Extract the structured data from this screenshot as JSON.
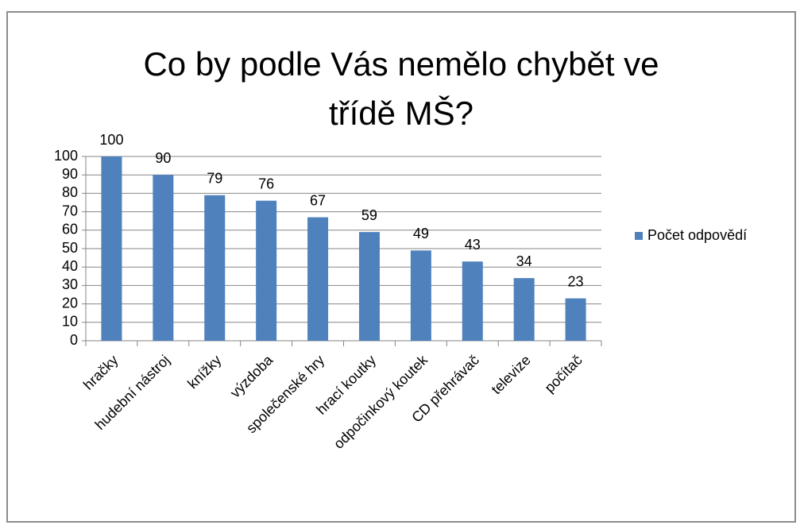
{
  "chart_data": {
    "type": "bar",
    "title": "Co by podle Vás nemělo chybět ve třídě MŠ?",
    "categories": [
      "hračky",
      "hudební nástroj",
      "knížky",
      "výzdoba",
      "společenské hry",
      "hrací koutky",
      "odpočinkový koutek",
      "CD přehrávač",
      "televize",
      "počítač"
    ],
    "series": [
      {
        "name": "Počet odpovědí",
        "color": "#4f81bd",
        "values": [
          100,
          90,
          79,
          76,
          67,
          59,
          49,
          43,
          34,
          23
        ]
      }
    ],
    "ylim": [
      0,
      100
    ],
    "yticks": [
      0,
      10,
      20,
      30,
      40,
      50,
      60,
      70,
      80,
      90,
      100
    ],
    "grid": true,
    "legend": "right"
  }
}
